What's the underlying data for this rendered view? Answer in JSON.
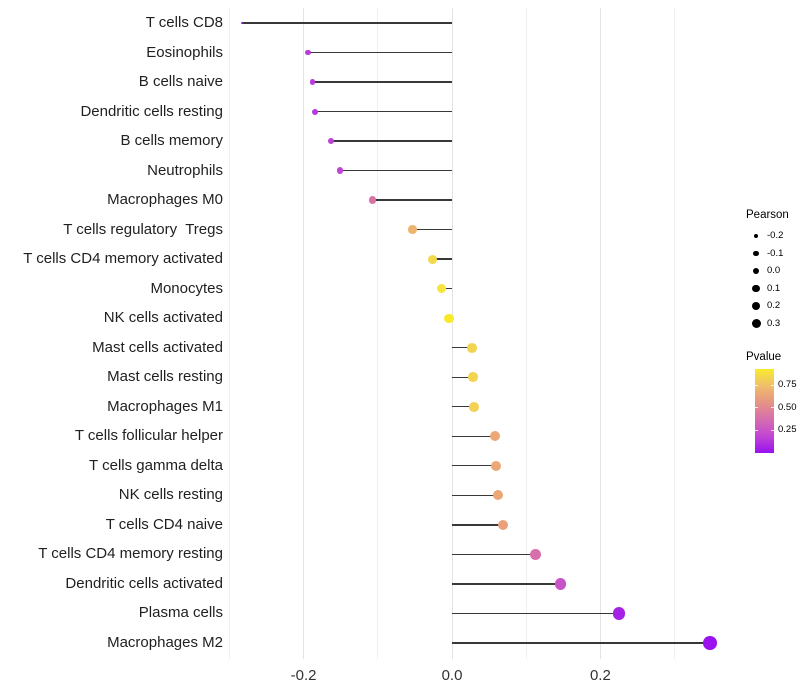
{
  "chart_data": {
    "type": "lollipop",
    "title": "",
    "xlabel": "",
    "ylabel": "",
    "description": "Horizontal lollipop chart of Pearson correlation per immune cell type; point size encodes Pearson correlation, point color encodes P-value",
    "x_axis": {
      "tick_values": [
        -0.2,
        0.0,
        0.2
      ],
      "tick_labels": [
        "-0.2",
        "0.0",
        "0.2"
      ],
      "range": [
        -0.315,
        0.38
      ],
      "major_gridlines": [
        -0.2,
        0.0,
        0.2
      ],
      "minor_gridlines": [
        -0.3,
        -0.1,
        0.1,
        0.3
      ],
      "grid": "on",
      "baseline": 0.0
    },
    "points": [
      {
        "label": "T cells CD8",
        "pearson": -0.283,
        "pvalue": 0.03
      },
      {
        "label": "Eosinophils",
        "pearson": -0.194,
        "pvalue": 0.15
      },
      {
        "label": "B cells naive",
        "pearson": -0.188,
        "pvalue": 0.15
      },
      {
        "label": "Dendritic cells resting",
        "pearson": -0.185,
        "pvalue": 0.15
      },
      {
        "label": "B cells memory",
        "pearson": -0.163,
        "pvalue": 0.17
      },
      {
        "label": "Neutrophils",
        "pearson": -0.151,
        "pvalue": 0.18
      },
      {
        "label": "Macrophages M0",
        "pearson": -0.107,
        "pvalue": 0.4
      },
      {
        "label": "T cells regulatory  Tregs",
        "pearson": -0.053,
        "pvalue": 0.7
      },
      {
        "label": "T cells CD4 memory activated",
        "pearson": -0.026,
        "pvalue": 0.85
      },
      {
        "label": "Monocytes",
        "pearson": -0.014,
        "pvalue": 0.9
      },
      {
        "label": "NK cells activated",
        "pearson": -0.004,
        "pvalue": 0.93
      },
      {
        "label": "Mast cells activated",
        "pearson": 0.027,
        "pvalue": 0.83
      },
      {
        "label": "Mast cells resting",
        "pearson": 0.028,
        "pvalue": 0.83
      },
      {
        "label": "Macrophages M1",
        "pearson": 0.03,
        "pvalue": 0.82
      },
      {
        "label": "T cells follicular helper",
        "pearson": 0.058,
        "pvalue": 0.65
      },
      {
        "label": "T cells gamma delta",
        "pearson": 0.059,
        "pvalue": 0.65
      },
      {
        "label": "NK cells resting",
        "pearson": 0.062,
        "pvalue": 0.65
      },
      {
        "label": "T cells CD4 naive",
        "pearson": 0.069,
        "pvalue": 0.62
      },
      {
        "label": "T cells CD4 memory resting",
        "pearson": 0.113,
        "pvalue": 0.38
      },
      {
        "label": "Dendritic cells activated",
        "pearson": 0.146,
        "pvalue": 0.25
      },
      {
        "label": "Plasma cells",
        "pearson": 0.225,
        "pvalue": 0.06
      },
      {
        "label": "Macrophages M2",
        "pearson": 0.348,
        "pvalue": 0.01
      }
    ],
    "size_legend": {
      "title": "Pearson",
      "values": [
        -0.2,
        -0.1,
        0.0,
        0.1,
        0.2,
        0.3
      ],
      "labels": [
        "-0.2",
        "-0.1",
        "0.0",
        "0.1",
        "0.2",
        "0.3"
      ],
      "position": "right"
    },
    "color_legend": {
      "title": "Pvalue",
      "tick_values": [
        0.75,
        0.5,
        0.25
      ],
      "tick_labels": [
        "0.75",
        "0.50",
        "0.25"
      ],
      "bar_range": [
        0,
        0.93
      ],
      "gradient_stops": [
        [
          0.0,
          "#9810ef"
        ],
        [
          0.2,
          "#c44ad2"
        ],
        [
          0.4,
          "#d873a8"
        ],
        [
          0.6,
          "#e99c7c"
        ],
        [
          0.75,
          "#f0c06a"
        ],
        [
          0.9,
          "#f6e53c"
        ],
        [
          1.0,
          "#fdf403"
        ]
      ],
      "position": "right"
    },
    "colors": {
      "background": "#ffffff",
      "stem": "#383838",
      "major_grid": "#e3e3e3",
      "minor_grid": "#f0f0f0",
      "axis_text": "#333333",
      "label_text": "#1f1f1f"
    }
  }
}
